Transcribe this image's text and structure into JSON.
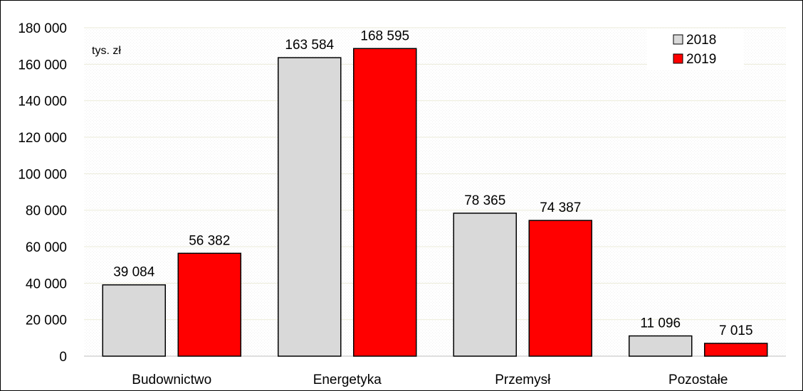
{
  "chart_data": {
    "type": "bar",
    "unit_label": "tys. zł",
    "categories": [
      "Budownictwo",
      "Energetyka",
      "Przemysł",
      "Pozostałe"
    ],
    "series": [
      {
        "name": "2018",
        "color": "#d9d9d9",
        "values": [
          39084,
          163584,
          78365,
          11096
        ],
        "labels": [
          "39 084",
          "163 584",
          "78 365",
          "11 096"
        ]
      },
      {
        "name": "2019",
        "color": "#ff0000",
        "values": [
          56382,
          168595,
          74387,
          7015
        ],
        "labels": [
          "56 382",
          "168 595",
          "74 387",
          "7 015"
        ]
      }
    ],
    "ylim": [
      0,
      180000
    ],
    "yticks": [
      0,
      20000,
      40000,
      60000,
      80000,
      100000,
      120000,
      140000,
      160000,
      180000
    ],
    "ytick_labels": [
      "0",
      "20 000",
      "40 000",
      "60 000",
      "80 000",
      "100 000",
      "120 000",
      "140 000",
      "160 000",
      "180 000"
    ],
    "grid": true,
    "grid_color": "#ebebd9",
    "legend_position": "top-right",
    "title": "",
    "xlabel": "",
    "ylabel": ""
  }
}
